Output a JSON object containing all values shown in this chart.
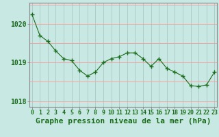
{
  "x": [
    0,
    1,
    2,
    3,
    4,
    5,
    6,
    7,
    8,
    9,
    10,
    11,
    12,
    13,
    14,
    15,
    16,
    17,
    18,
    19,
    20,
    21,
    22,
    23
  ],
  "y": [
    1020.25,
    1019.7,
    1019.55,
    1019.3,
    1019.1,
    1019.05,
    1018.8,
    1018.65,
    1018.75,
    1019.0,
    1019.1,
    1019.15,
    1019.25,
    1019.25,
    1019.1,
    1018.9,
    1019.1,
    1018.85,
    1018.75,
    1018.65,
    1018.4,
    1018.38,
    1018.42,
    1018.75
  ],
  "line_color": "#1a6b1a",
  "marker_color": "#1a6b1a",
  "bg_color": "#c8e8e4",
  "grid_color_v": "#aac8c4",
  "grid_color_h": "#ff9999",
  "xlabel": "Graphe pression niveau de la mer (hPa)",
  "xlabel_color": "#1a6b1a",
  "tick_color": "#1a6b1a",
  "axis_color": "#888888",
  "yticks": [
    1018,
    1019,
    1020
  ],
  "ylim": [
    1017.85,
    1020.55
  ],
  "xlim": [
    -0.3,
    23.3
  ],
  "xtick_labels": [
    "0",
    "1",
    "2",
    "3",
    "4",
    "5",
    "6",
    "7",
    "8",
    "9",
    "10",
    "11",
    "12",
    "13",
    "14",
    "15",
    "16",
    "17",
    "18",
    "19",
    "20",
    "21",
    "22",
    "23"
  ],
  "tick_fontsize": 7,
  "label_fontsize": 8
}
